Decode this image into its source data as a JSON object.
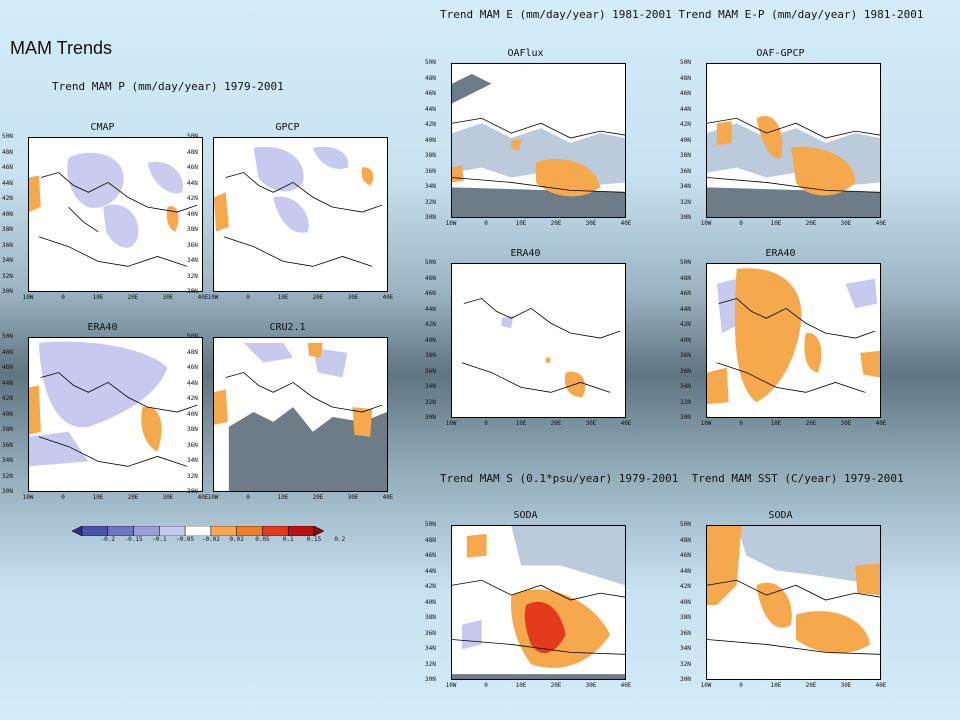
{
  "slide": {
    "title": "MAM Trends",
    "headers": {
      "precip": "Trend MAM P (mm/day/year) 1979-2001",
      "evap_top": "Trend MAM E (mm/day/year) 1981-2001 Trend MAM E-P (mm/day/year) 1981-2001",
      "ocean": "Trend MAM S (0.1*psu/year) 1979-2001  Trend MAM SST (C/year) 1979-2001"
    }
  },
  "axes": {
    "lat_ticks": [
      "50N",
      "48N",
      "46N",
      "44N",
      "42N",
      "40N",
      "38N",
      "36N",
      "34N",
      "32N",
      "30N"
    ],
    "lon_ticks": [
      "10W",
      "0",
      "10E",
      "20E",
      "30E",
      "40E"
    ]
  },
  "panels": [
    {
      "id": "cmap",
      "title": "CMAP"
    },
    {
      "id": "gpcp",
      "title": "GPCP"
    },
    {
      "id": "era40_p",
      "title": "ERA40"
    },
    {
      "id": "cru",
      "title": "CRU2.1"
    },
    {
      "id": "oaflux",
      "title": "OAFlux"
    },
    {
      "id": "oaf_gpcp",
      "title": "OAF-GPCP"
    },
    {
      "id": "era40_e",
      "title": "ERA40"
    },
    {
      "id": "era40_ep",
      "title": "ERA40"
    },
    {
      "id": "soda_s",
      "title": "SODA"
    },
    {
      "id": "soda_sst",
      "title": "SODA"
    }
  ],
  "colorbar": {
    "labels": [
      "-0.2",
      "-0.15",
      "-0.1",
      "-0.05",
      "-0.02",
      "0.02",
      "0.05",
      "0.1",
      "0.15",
      "0.2"
    ],
    "colors": [
      "#2b2f8a",
      "#4a55a8",
      "#6d75c0",
      "#9a9fd8",
      "#c8c9ef",
      "#ffffff",
      "#f5a94c",
      "#f07d27",
      "#e33a1d",
      "#b8120f",
      "#8a0b08"
    ],
    "ocean_color": "#6e7c88"
  }
}
